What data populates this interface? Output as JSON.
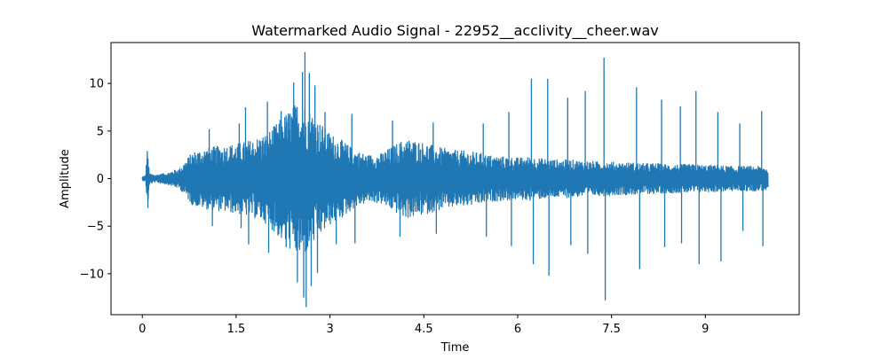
{
  "chart_data": {
    "type": "line",
    "title": "Watermarked Audio Signal - 22952__acclivity__cheer.wav",
    "xlabel": "Time",
    "ylabel": "Amplitude",
    "xlim": [
      -0.5,
      10.5
    ],
    "ylim": [
      -14.3,
      14.3
    ],
    "xticks": [
      0,
      1.5,
      3,
      4.5,
      6,
      7.5,
      9
    ],
    "xtick_labels": [
      "0",
      "1.5",
      "3",
      "4.5",
      "6",
      "7.5",
      "9"
    ],
    "yticks": [
      10,
      5,
      0,
      -5,
      -10
    ],
    "ytick_labels": [
      "10",
      "5",
      "0",
      "−5",
      "−10"
    ],
    "grid": false,
    "legend": "none",
    "series": [
      {
        "color": "#1f77b4",
        "x_start": 0.0,
        "x_end": 10.0,
        "envelope": {
          "x": [
            0.0,
            0.05,
            0.08,
            0.12,
            0.2,
            0.4,
            0.6,
            0.8,
            1.0,
            1.2,
            1.4,
            1.6,
            1.8,
            2.0,
            2.2,
            2.4,
            2.5,
            2.6,
            2.7,
            2.8,
            3.0,
            3.2,
            3.4,
            3.6,
            3.8,
            4.0,
            4.2,
            4.4,
            4.6,
            4.8,
            5.0,
            5.2,
            5.4,
            5.6,
            5.8,
            6.0,
            6.2,
            6.4,
            6.6,
            6.8,
            7.0,
            7.2,
            7.4,
            7.6,
            7.8,
            8.0,
            8.2,
            8.4,
            8.6,
            8.8,
            9.0,
            9.2,
            9.4,
            9.6,
            9.8,
            10.0
          ],
          "upper": [
            0.2,
            0.3,
            2.9,
            0.5,
            0.4,
            0.6,
            1.1,
            2.8,
            3.2,
            3.4,
            3.6,
            3.8,
            4.2,
            4.8,
            6.2,
            7.6,
            8.2,
            7.8,
            7.2,
            6.2,
            4.8,
            4.0,
            3.0,
            2.5,
            2.6,
            3.4,
            4.2,
            4.0,
            3.6,
            3.2,
            3.0,
            2.9,
            2.7,
            2.4,
            2.3,
            2.2,
            2.3,
            2.1,
            2.0,
            2.0,
            1.9,
            1.8,
            1.8,
            1.7,
            1.7,
            1.6,
            1.6,
            1.5,
            1.5,
            1.5,
            1.4,
            1.4,
            1.3,
            1.3,
            1.3,
            1.2
          ],
          "lower": [
            -0.2,
            -0.3,
            -3.1,
            -0.5,
            -0.4,
            -0.6,
            -1.1,
            -2.8,
            -3.2,
            -3.4,
            -3.6,
            -3.8,
            -4.2,
            -4.8,
            -6.4,
            -7.8,
            -8.3,
            -8.0,
            -7.3,
            -6.3,
            -4.9,
            -4.1,
            -3.0,
            -2.5,
            -2.6,
            -3.4,
            -4.2,
            -4.0,
            -3.6,
            -3.2,
            -3.0,
            -2.9,
            -2.7,
            -2.4,
            -2.3,
            -2.2,
            -2.3,
            -2.1,
            -2.0,
            -2.0,
            -1.9,
            -1.8,
            -1.8,
            -1.7,
            -1.7,
            -1.6,
            -1.6,
            -1.5,
            -1.5,
            -1.5,
            -1.4,
            -1.4,
            -1.3,
            -1.3,
            -1.3,
            -1.2
          ]
        },
        "peaks": [
          [
            0.08,
            2.9
          ],
          [
            0.09,
            -3.1
          ],
          [
            1.07,
            5.2
          ],
          [
            1.12,
            -5.0
          ],
          [
            1.55,
            5.8
          ],
          [
            1.58,
            -5.2
          ],
          [
            1.65,
            7.5
          ],
          [
            1.7,
            -6.9
          ],
          [
            2.0,
            8.1
          ],
          [
            2.02,
            -7.8
          ],
          [
            2.22,
            7.1
          ],
          [
            2.3,
            -7.2
          ],
          [
            2.42,
            10.1
          ],
          [
            2.48,
            -10.9
          ],
          [
            2.56,
            11.2
          ],
          [
            2.58,
            -12.5
          ],
          [
            2.6,
            13.3
          ],
          [
            2.62,
            -13.5
          ],
          [
            2.67,
            11.1
          ],
          [
            2.7,
            -11.3
          ],
          [
            2.76,
            9.8
          ],
          [
            2.8,
            -9.9
          ],
          [
            2.92,
            7.0
          ],
          [
            3.1,
            -6.9
          ],
          [
            3.35,
            6.8
          ],
          [
            3.4,
            -6.8
          ],
          [
            4.0,
            6.1
          ],
          [
            4.12,
            -6.1
          ],
          [
            4.65,
            5.9
          ],
          [
            4.7,
            -5.8
          ],
          [
            5.45,
            5.8
          ],
          [
            5.5,
            -6.1
          ],
          [
            5.86,
            7.0
          ],
          [
            5.9,
            -7.1
          ],
          [
            6.22,
            10.5
          ],
          [
            6.25,
            -9.0
          ],
          [
            6.48,
            10.5
          ],
          [
            6.5,
            -10.2
          ],
          [
            6.8,
            8.5
          ],
          [
            6.85,
            -7.0
          ],
          [
            7.08,
            9.2
          ],
          [
            7.12,
            -7.9
          ],
          [
            7.38,
            12.7
          ],
          [
            7.4,
            -12.8
          ],
          [
            7.9,
            9.6
          ],
          [
            7.95,
            -9.5
          ],
          [
            8.3,
            8.3
          ],
          [
            8.35,
            -7.2
          ],
          [
            8.6,
            7.6
          ],
          [
            8.62,
            -6.8
          ],
          [
            8.85,
            9.2
          ],
          [
            8.9,
            -9.0
          ],
          [
            9.2,
            7.0
          ],
          [
            9.25,
            -8.7
          ],
          [
            9.55,
            5.8
          ],
          [
            9.6,
            -5.5
          ],
          [
            9.9,
            7.1
          ],
          [
            9.92,
            -7.1
          ]
        ]
      }
    ]
  }
}
